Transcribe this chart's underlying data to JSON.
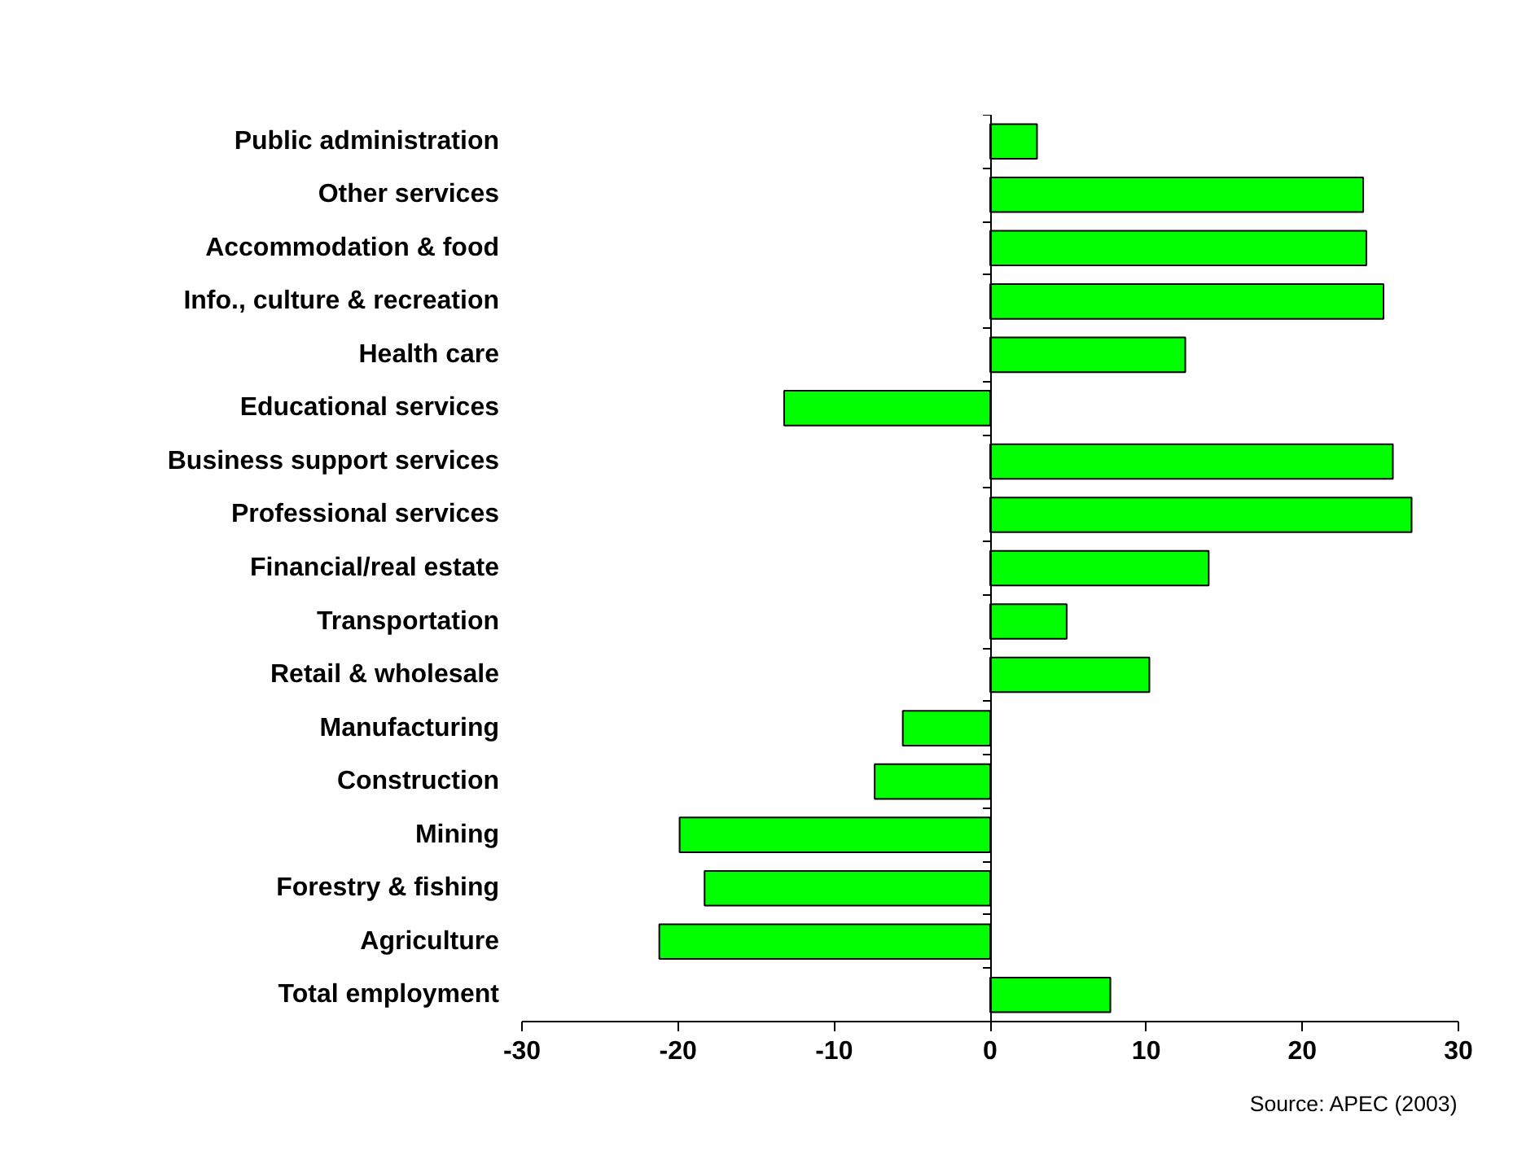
{
  "chart_data": {
    "type": "bar",
    "orientation": "horizontal",
    "categories": [
      "Public administration",
      "Other services",
      "Accommodation & food",
      "Info., culture & recreation",
      "Health care",
      "Educational services",
      "Business support services",
      "Professional services",
      "Financial/real estate",
      "Transportation",
      "Retail & wholesale",
      "Manufacturing",
      "Construction",
      "Mining",
      "Forestry & fishing",
      "Agriculture",
      "Total employment"
    ],
    "values": [
      3.0,
      23.9,
      24.1,
      25.2,
      12.5,
      -13.2,
      25.8,
      27.0,
      14.0,
      4.9,
      10.2,
      -5.6,
      -7.4,
      -19.9,
      -18.3,
      -21.2,
      7.7
    ],
    "color": "#00ff00",
    "xlim": [
      -30,
      30
    ],
    "xticks": [
      -30,
      -20,
      -10,
      0,
      10,
      20,
      30
    ],
    "annotations": [
      "Source: APEC (2003)"
    ]
  }
}
